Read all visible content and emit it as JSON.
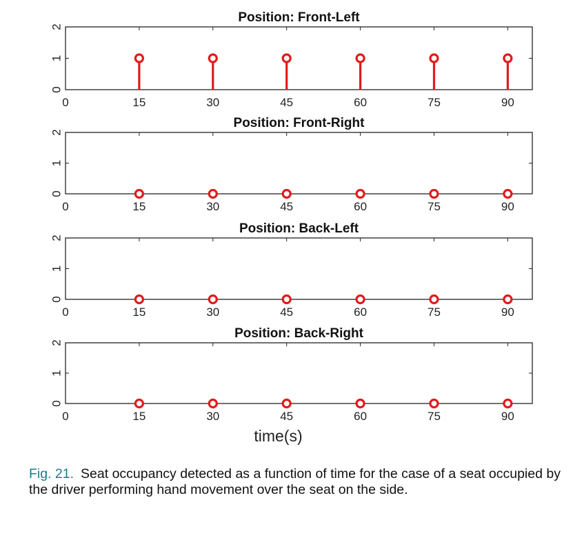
{
  "caption": {
    "label": "Fig. 21.",
    "text": "Seat occupancy detected as a function of time for the case of a seat occupied by the driver performing hand movement over the seat on the side."
  },
  "colors": {
    "stem": "#e01b1b",
    "axis": "#222222"
  },
  "chart_data": [
    {
      "type": "stem",
      "title": "Position: Front-Left",
      "xlabel": "",
      "ylabel": "",
      "x": [
        15,
        30,
        45,
        60,
        75,
        90
      ],
      "y": [
        1,
        1,
        1,
        1,
        1,
        1
      ],
      "xlim": [
        0,
        95
      ],
      "ylim": [
        0,
        2
      ],
      "xticks": [
        "0",
        "15",
        "30",
        "45",
        "60",
        "75",
        "90"
      ],
      "yticks": [
        "0",
        "1",
        "2"
      ],
      "grid": false
    },
    {
      "type": "stem",
      "title": "Position: Front-Right",
      "xlabel": "",
      "ylabel": "",
      "x": [
        15,
        30,
        45,
        60,
        75,
        90
      ],
      "y": [
        0,
        0,
        0,
        0,
        0,
        0
      ],
      "xlim": [
        0,
        95
      ],
      "ylim": [
        0,
        2
      ],
      "xticks": [
        "0",
        "15",
        "30",
        "45",
        "60",
        "75",
        "90"
      ],
      "yticks": [
        "0",
        "1",
        "2"
      ],
      "grid": false
    },
    {
      "type": "stem",
      "title": "Position: Back-Left",
      "xlabel": "",
      "ylabel": "",
      "x": [
        15,
        30,
        45,
        60,
        75,
        90
      ],
      "y": [
        0,
        0,
        0,
        0,
        0,
        0
      ],
      "xlim": [
        0,
        95
      ],
      "ylim": [
        0,
        2
      ],
      "xticks": [
        "0",
        "15",
        "30",
        "45",
        "60",
        "75",
        "90"
      ],
      "yticks": [
        "0",
        "1",
        "2"
      ],
      "grid": false
    },
    {
      "type": "stem",
      "title": "Position: Back-Right",
      "xlabel": "time(s)",
      "ylabel": "",
      "x": [
        15,
        30,
        45,
        60,
        75,
        90
      ],
      "y": [
        0,
        0,
        0,
        0,
        0,
        0
      ],
      "xlim": [
        0,
        95
      ],
      "ylim": [
        0,
        2
      ],
      "xticks": [
        "0",
        "15",
        "30",
        "45",
        "60",
        "75",
        "90"
      ],
      "yticks": [
        "0",
        "1",
        "2"
      ],
      "grid": false
    }
  ]
}
